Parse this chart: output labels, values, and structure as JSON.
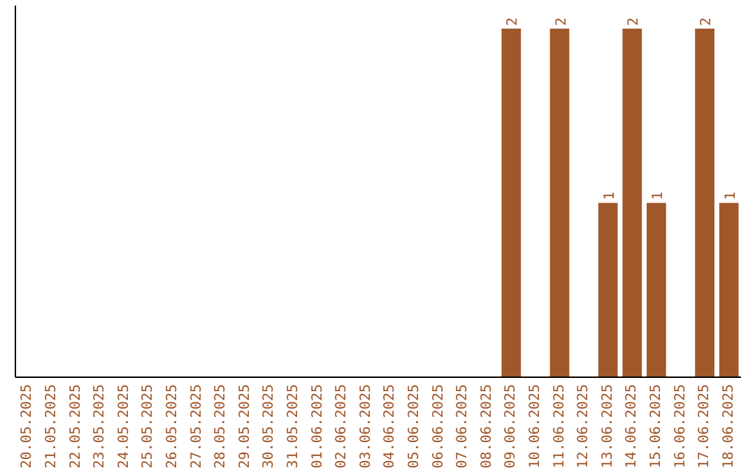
{
  "chart_data": {
    "type": "bar",
    "categories": [
      "20.05.2025",
      "21.05.2025",
      "22.05.2025",
      "23.05.2025",
      "24.05.2025",
      "25.05.2025",
      "26.05.2025",
      "27.05.2025",
      "28.05.2025",
      "29.05.2025",
      "30.05.2025",
      "31.05.2025",
      "01.06.2025",
      "02.06.2025",
      "03.06.2025",
      "04.06.2025",
      "05.06.2025",
      "06.06.2025",
      "07.06.2025",
      "08.06.2025",
      "09.06.2025",
      "10.06.2025",
      "11.06.2025",
      "12.06.2025",
      "13.06.2025",
      "14.06.2025",
      "15.06.2025",
      "16.06.2025",
      "17.06.2025",
      "18.06.2025"
    ],
    "values": [
      null,
      null,
      null,
      null,
      null,
      null,
      null,
      null,
      null,
      null,
      null,
      null,
      null,
      null,
      null,
      null,
      null,
      null,
      null,
      null,
      2,
      null,
      2,
      null,
      1,
      2,
      1,
      null,
      2,
      1
    ],
    "data_labels": true,
    "color": "#a0572a"
  }
}
